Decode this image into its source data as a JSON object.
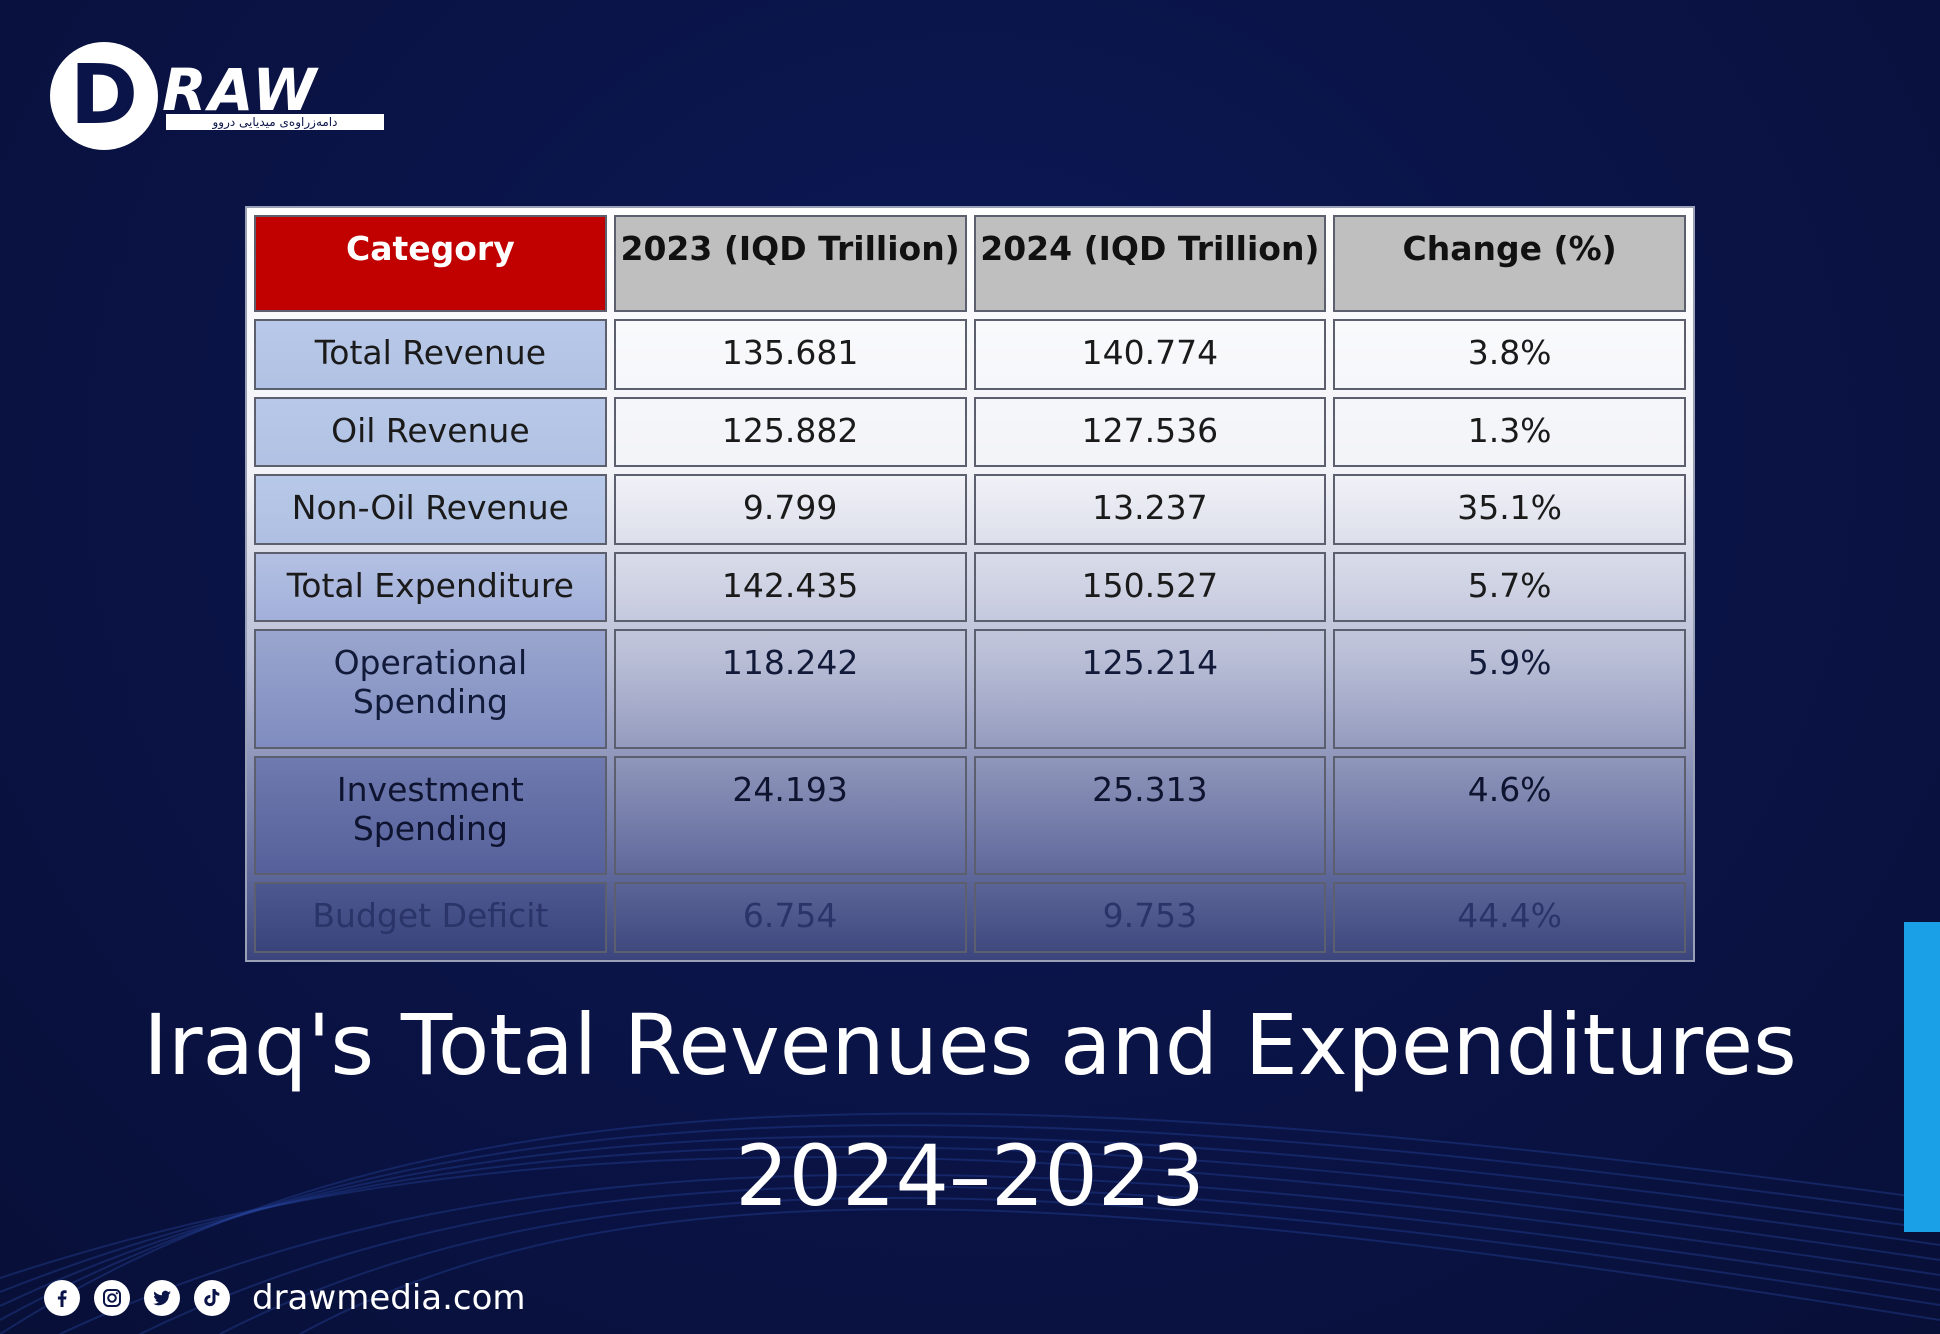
{
  "brand": {
    "logo_text": "DRAW",
    "logo_subtext": "دامەزراوەی میدیایی دروو",
    "website": "drawmedia.com",
    "social_icons": [
      "facebook-icon",
      "instagram-icon",
      "twitter-icon",
      "tiktok-icon"
    ],
    "accent_color": "#1aa0e6",
    "background_color": "#0a1448"
  },
  "table": {
    "headers": [
      "Category",
      "2023 (IQD Trillion)",
      "2024 (IQD Trillion)",
      "Change (%)"
    ],
    "header_colors": {
      "category": "#c10000",
      "others": "#bfbfbf"
    },
    "rows": [
      {
        "category": "Total Revenue",
        "y2023": "135.681",
        "y2024": "140.774",
        "change": "3.8%"
      },
      {
        "category": "Oil Revenue",
        "y2023": "125.882",
        "y2024": "127.536",
        "change": "1.3%"
      },
      {
        "category": "Non-Oil Revenue",
        "y2023": "9.799",
        "y2024": "13.237",
        "change": "35.1%"
      },
      {
        "category": "Total Expenditure",
        "y2023": "142.435",
        "y2024": "150.527",
        "change": "5.7%"
      },
      {
        "category": "Operational Spending",
        "y2023": "118.242",
        "y2024": "125.214",
        "change": "5.9%"
      },
      {
        "category": "Investment Spending",
        "y2023": "24.193",
        "y2024": "25.313",
        "change": "4.6%"
      },
      {
        "category": "Budget Deficit",
        "y2023": "6.754",
        "y2024": "9.753",
        "change": "44.4%"
      }
    ]
  },
  "title": "Iraq's Total Revenues and Expenditures",
  "subtitle": "2024–2023"
}
